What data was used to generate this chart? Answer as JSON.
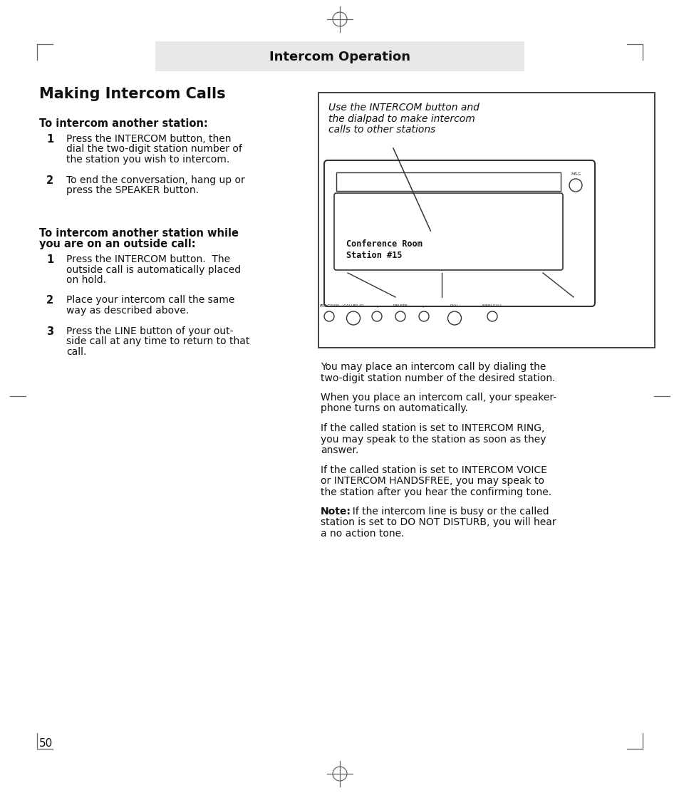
{
  "page_bg": "#ffffff",
  "header_bg": "#e8e8e8",
  "header_text": "Intercom Operation",
  "header_text_color": "#111111",
  "title": "Making Intercom Calls",
  "section1_heading": "To intercom another station:",
  "section1_items": [
    [
      "Press the INTERCOM button, then",
      "dial the two-digit station number of",
      "the station you wish to intercom."
    ],
    [
      "To end the conversation, hang up or",
      "press the SPEAKER button."
    ]
  ],
  "section2_heading": [
    "To intercom another station while",
    "you are on an outside call:"
  ],
  "section2_items": [
    [
      "Press the INTERCOM button.  The",
      "outside call is automatically placed",
      "on hold."
    ],
    [
      "Place your intercom call the same",
      "way as described above."
    ],
    [
      "Press the LINE button of your out-",
      "side call at any time to return to that",
      "call."
    ]
  ],
  "callout_text": [
    "Use the INTERCOM button and",
    "the dialpad to make intercom",
    "calls to other stations"
  ],
  "display_line1": "Conference Room",
  "display_line2": "Station #15",
  "msg_label": "MSG",
  "btn_labels": [
    "PROGRAM",
    "CALLER ID",
    "<",
    "DELETE",
    ">",
    "DIAL",
    "NEW CALL"
  ],
  "para1_lines": [
    "You may place an intercom call by dialing the",
    "two-digit station number of the desired station."
  ],
  "para2_lines": [
    "When you place an intercom call, your speaker-",
    "phone turns on automatically."
  ],
  "para3_lines": [
    "If the called station is set to INTERCOM RING,",
    "you may speak to the station as soon as they",
    "answer."
  ],
  "para4_lines": [
    "If the called station is set to INTERCOM VOICE",
    "or INTERCOM HANDSFREE, you may speak to",
    "the station after you hear the confirming tone."
  ],
  "note_bold": "Note:",
  "note_rest": "  If the intercom line is busy or the called",
  "note_rest2": [
    "station is set to DO NOT DISTURB, you will hear",
    "a no action tone."
  ],
  "page_number": "50"
}
